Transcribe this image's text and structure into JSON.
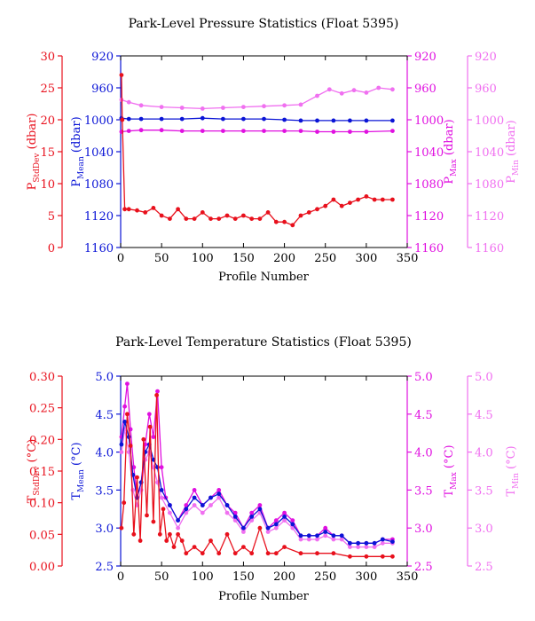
{
  "chart_data": [
    {
      "type": "line",
      "title": "Park-Level Pressure Statistics (Float 5395)",
      "xlabel": "Profile Number",
      "xlim": [
        0,
        350
      ],
      "xticks": [
        0,
        50,
        100,
        150,
        200,
        250,
        300,
        350
      ],
      "axes": [
        {
          "key": "std",
          "label": "P",
          "subscript": "StdDev",
          "unit": " (dbar)",
          "color": "#e8101c",
          "ylim": [
            0,
            30
          ],
          "ticks": [
            0,
            5,
            10,
            15,
            20,
            25,
            30
          ],
          "inverted": false
        },
        {
          "key": "mean",
          "label": "P",
          "subscript": "Mean",
          "unit": " (dbar)",
          "color": "#0a14d6",
          "ylim": [
            920,
            1160
          ],
          "ticks": [
            920,
            960,
            1000,
            1040,
            1080,
            1120,
            1160
          ],
          "inverted": true
        },
        {
          "key": "max",
          "label": "P",
          "subscript": "Max",
          "unit": " (dbar)",
          "color": "#e010e0",
          "ylim": [
            920,
            1160
          ],
          "ticks": [
            920,
            960,
            1000,
            1040,
            1080,
            1120,
            1160
          ],
          "inverted": true
        },
        {
          "key": "min",
          "label": "P",
          "subscript": "Min",
          "unit": " (dbar)",
          "color": "#f070f0",
          "ylim": [
            920,
            1160
          ],
          "ticks": [
            920,
            960,
            1000,
            1040,
            1080,
            1120,
            1160
          ],
          "inverted": true
        }
      ],
      "series": [
        {
          "axis": "min",
          "color": "#f070f0",
          "x": [
            1,
            10,
            25,
            50,
            75,
            100,
            125,
            150,
            175,
            200,
            220,
            240,
            255,
            270,
            285,
            300,
            315,
            332
          ],
          "values": [
            975,
            978,
            982,
            984,
            985,
            986,
            985,
            984,
            983,
            982,
            981,
            970,
            962,
            967,
            963,
            966,
            960,
            962
          ]
        },
        {
          "axis": "mean",
          "color": "#0a14d6",
          "x": [
            1,
            10,
            25,
            50,
            75,
            100,
            125,
            150,
            175,
            200,
            220,
            240,
            260,
            280,
            300,
            332
          ],
          "values": [
            998,
            999,
            999,
            999,
            999,
            998,
            999,
            999,
            999,
            1000,
            1001,
            1001,
            1001,
            1001,
            1001,
            1001
          ]
        },
        {
          "axis": "max",
          "color": "#e010e0",
          "x": [
            1,
            10,
            25,
            50,
            75,
            100,
            125,
            150,
            175,
            200,
            220,
            240,
            260,
            280,
            300,
            332
          ],
          "values": [
            1015,
            1014,
            1013,
            1013,
            1014,
            1014,
            1014,
            1014,
            1014,
            1014,
            1014,
            1015,
            1015,
            1015,
            1015,
            1014
          ]
        },
        {
          "axis": "std",
          "color": "#e8101c",
          "x": [
            1,
            2,
            5,
            10,
            20,
            30,
            40,
            50,
            60,
            70,
            80,
            90,
            100,
            110,
            120,
            130,
            140,
            150,
            160,
            170,
            180,
            190,
            200,
            210,
            220,
            230,
            240,
            250,
            260,
            270,
            280,
            290,
            300,
            310,
            320,
            332
          ],
          "values": [
            27,
            20,
            6,
            6,
            5.8,
            5.5,
            6.2,
            5,
            4.5,
            6,
            4.5,
            4.5,
            5.5,
            4.5,
            4.5,
            5,
            4.5,
            5,
            4.5,
            4.5,
            5.5,
            4,
            4,
            3.5,
            5,
            5.5,
            6,
            6.5,
            7.5,
            6.5,
            7,
            7.5,
            8,
            7.5,
            7.5,
            7.5
          ]
        }
      ],
      "grid": false
    },
    {
      "type": "line",
      "title": "Park-Level Temperature Statistics (Float 5395)",
      "xlabel": "Profile Number",
      "xlim": [
        0,
        350
      ],
      "xticks": [
        0,
        50,
        100,
        150,
        200,
        250,
        300,
        350
      ],
      "axes": [
        {
          "key": "std",
          "label": "T",
          "subscript": "StdDev",
          "unit": " (°C)",
          "color": "#e8101c",
          "ylim": [
            0,
            0.3
          ],
          "ticks": [
            "0.00",
            "0.05",
            "0.10",
            "0.15",
            "0.20",
            "0.25",
            "0.30"
          ],
          "inverted": false
        },
        {
          "key": "mean",
          "label": "T",
          "subscript": "Mean",
          "unit": " (°C)",
          "color": "#0a14d6",
          "ylim": [
            2.5,
            5.0
          ],
          "ticks": [
            "2.5",
            "3.0",
            "3.5",
            "4.0",
            "4.5",
            "5.0"
          ],
          "inverted": false
        },
        {
          "key": "max",
          "label": "T",
          "subscript": "Max",
          "unit": " (°C)",
          "color": "#e010e0",
          "ylim": [
            2.5,
            5.0
          ],
          "ticks": [
            "2.5",
            "3.0",
            "3.5",
            "4.0",
            "4.5",
            "5.0"
          ],
          "inverted": false
        },
        {
          "key": "min",
          "label": "T",
          "subscript": "Min",
          "unit": " (°C)",
          "color": "#f070f0",
          "ylim": [
            2.5,
            5.0
          ],
          "ticks": [
            "2.5",
            "3.0",
            "3.5",
            "4.0",
            "4.5",
            "5.0"
          ],
          "inverted": false
        }
      ],
      "series": [
        {
          "axis": "max",
          "color": "#e010e0",
          "x": [
            1,
            5,
            8,
            12,
            16,
            20,
            25,
            30,
            35,
            40,
            45,
            50,
            55,
            60,
            70,
            80,
            90,
            100,
            110,
            120,
            130,
            140,
            150,
            160,
            170,
            180,
            190,
            200,
            210,
            220,
            230,
            240,
            250,
            260,
            270,
            280,
            290,
            300,
            310,
            320,
            332
          ],
          "values": [
            4.2,
            4.6,
            4.9,
            4.3,
            3.8,
            3.4,
            3.6,
            4.1,
            4.5,
            4.2,
            4.8,
            3.8,
            3.4,
            3.3,
            3.1,
            3.3,
            3.5,
            3.3,
            3.4,
            3.5,
            3.3,
            3.2,
            3.0,
            3.2,
            3.3,
            3.0,
            3.1,
            3.2,
            3.1,
            2.9,
            2.9,
            2.9,
            3.0,
            2.9,
            2.9,
            2.8,
            2.8,
            2.8,
            2.8,
            2.85,
            2.85
          ]
        },
        {
          "axis": "min",
          "color": "#f070f0",
          "x": [
            1,
            5,
            10,
            15,
            20,
            25,
            30,
            35,
            40,
            45,
            50,
            60,
            70,
            80,
            90,
            100,
            110,
            120,
            130,
            140,
            150,
            160,
            170,
            180,
            190,
            200,
            210,
            220,
            230,
            240,
            250,
            260,
            270,
            280,
            290,
            300,
            310,
            320,
            332
          ],
          "values": [
            4.0,
            4.3,
            4.0,
            3.5,
            3.3,
            3.5,
            3.9,
            4.0,
            3.8,
            3.6,
            3.4,
            3.2,
            3.0,
            3.2,
            3.3,
            3.2,
            3.3,
            3.4,
            3.2,
            3.1,
            2.95,
            3.1,
            3.2,
            2.95,
            3.0,
            3.1,
            3.0,
            2.85,
            2.85,
            2.85,
            2.9,
            2.85,
            2.85,
            2.75,
            2.75,
            2.75,
            2.75,
            2.8,
            2.8
          ]
        },
        {
          "axis": "mean",
          "color": "#0a14d6",
          "x": [
            1,
            5,
            10,
            15,
            20,
            25,
            30,
            35,
            40,
            45,
            50,
            60,
            70,
            80,
            90,
            100,
            110,
            120,
            130,
            140,
            150,
            160,
            170,
            180,
            190,
            200,
            210,
            220,
            230,
            240,
            250,
            260,
            270,
            280,
            290,
            300,
            310,
            320,
            332
          ],
          "values": [
            4.1,
            4.4,
            4.2,
            3.7,
            3.4,
            3.6,
            4.0,
            4.1,
            3.9,
            3.8,
            3.5,
            3.3,
            3.1,
            3.25,
            3.4,
            3.3,
            3.4,
            3.45,
            3.3,
            3.15,
            3.0,
            3.15,
            3.25,
            3.0,
            3.05,
            3.15,
            3.05,
            2.9,
            2.9,
            2.9,
            2.95,
            2.9,
            2.9,
            2.8,
            2.8,
            2.8,
            2.8,
            2.85,
            2.82
          ]
        },
        {
          "axis": "std",
          "color": "#e8101c",
          "x": [
            1,
            4,
            8,
            12,
            16,
            20,
            24,
            28,
            32,
            36,
            40,
            44,
            48,
            52,
            56,
            60,
            65,
            70,
            75,
            80,
            90,
            100,
            110,
            120,
            130,
            140,
            150,
            160,
            170,
            180,
            190,
            200,
            220,
            240,
            260,
            280,
            300,
            320,
            332
          ],
          "values": [
            0.06,
            0.1,
            0.24,
            0.19,
            0.05,
            0.14,
            0.04,
            0.2,
            0.08,
            0.22,
            0.07,
            0.27,
            0.05,
            0.09,
            0.04,
            0.05,
            0.03,
            0.05,
            0.04,
            0.02,
            0.03,
            0.02,
            0.04,
            0.02,
            0.05,
            0.02,
            0.03,
            0.02,
            0.06,
            0.02,
            0.02,
            0.03,
            0.02,
            0.02,
            0.02,
            0.015,
            0.015,
            0.015,
            0.015
          ]
        }
      ],
      "grid": false
    }
  ]
}
